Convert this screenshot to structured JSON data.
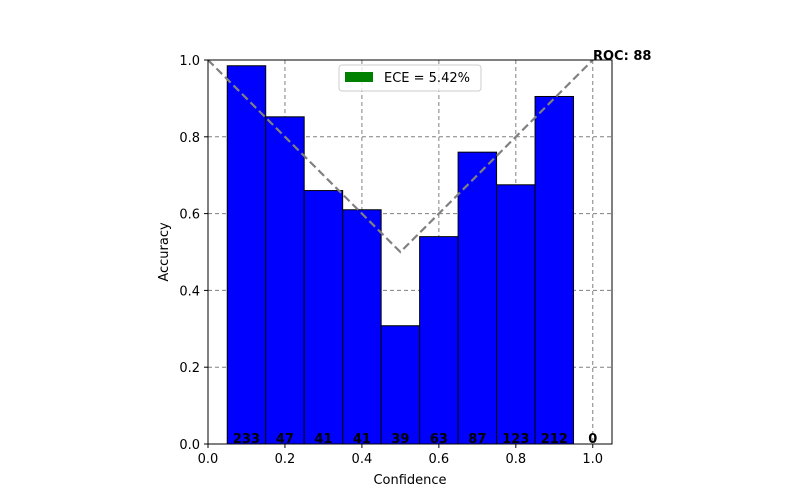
{
  "chart_data": {
    "type": "bar",
    "xlabel": "Confidence",
    "ylabel": "Accuracy",
    "xlim": [
      0.0,
      1.05
    ],
    "ylim": [
      0.0,
      1.0
    ],
    "xticks": [
      "0.0",
      "0.2",
      "0.4",
      "0.6",
      "0.8",
      "1.0"
    ],
    "yticks": [
      "0.0",
      "0.2",
      "0.4",
      "0.6",
      "0.8",
      "1.0"
    ],
    "grid": true,
    "bin_centers": [
      0.1,
      0.2,
      0.3,
      0.4,
      0.5,
      0.6,
      0.7,
      0.8,
      0.9,
      1.0
    ],
    "bin_width": 0.1,
    "accuracy": [
      0.985,
      0.852,
      0.66,
      0.61,
      0.308,
      0.54,
      0.76,
      0.675,
      0.905,
      0.0
    ],
    "counts": [
      "233",
      "47",
      "41",
      "41",
      "39",
      "63",
      "87",
      "123",
      "212",
      "0"
    ],
    "bar_color": "#0000ff",
    "reference_line": {
      "points": [
        [
          0.0,
          1.0
        ],
        [
          0.5,
          0.5
        ],
        [
          1.0,
          1.0
        ]
      ],
      "color": "#808080",
      "style": "dashed"
    },
    "legend": {
      "label": "ECE = 5.42%",
      "color": "#008000",
      "position": "upper center"
    },
    "annotation": "ROC: 88"
  }
}
